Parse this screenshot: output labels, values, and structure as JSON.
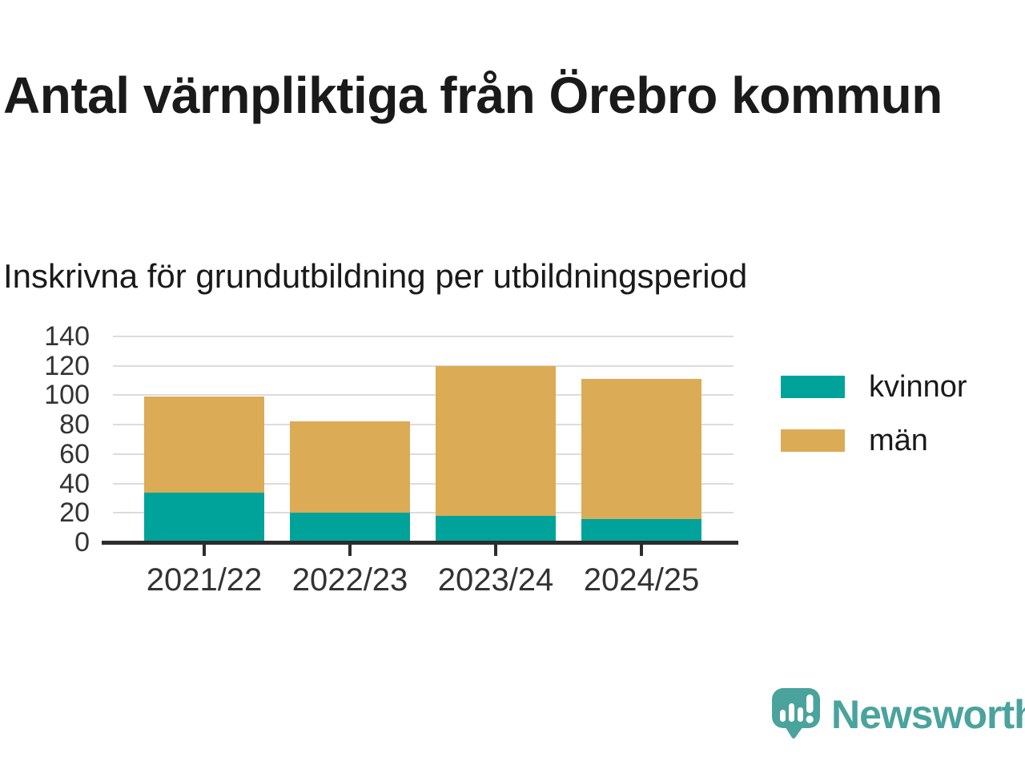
{
  "header": {
    "title": "Antal värnpliktiga från Örebro kommun",
    "subtitle": "Inskrivna för grundutbildning per utbildningsperiod"
  },
  "chart_data": {
    "type": "bar",
    "stacked": true,
    "title": "Antal värnpliktiga från Örebro kommun",
    "subtitle": "Inskrivna för grundutbildning per utbildningsperiod",
    "categories": [
      "2021/22",
      "2022/23",
      "2023/24",
      "2024/25"
    ],
    "series": [
      {
        "name": "kvinnor",
        "color": "#00a39a",
        "values": [
          34,
          20,
          18,
          16
        ]
      },
      {
        "name": "män",
        "color": "#dcab55",
        "values": [
          65,
          62,
          102,
          95
        ]
      }
    ],
    "totals": [
      99,
      82,
      120,
      111
    ],
    "ylim": [
      0,
      140
    ],
    "yticks": [
      0,
      20,
      40,
      60,
      80,
      100,
      120,
      140
    ],
    "grid": "horizontal",
    "legend_position": "right",
    "colors": {
      "gridline": "#dcdcdc",
      "axis": "#2d2d2d",
      "tick_label": "#333333"
    }
  },
  "branding": {
    "logo_text": "Newsworthy",
    "logo_color": "#4aa39d",
    "logo_icon": "newsworthy-speech-bubble-chart-icon"
  }
}
